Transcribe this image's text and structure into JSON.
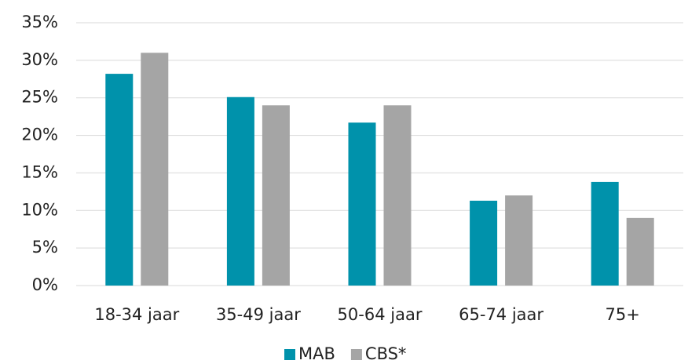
{
  "chart_data": {
    "type": "bar",
    "categories": [
      "18-34 jaar",
      "35-49 jaar",
      "50-64 jaar",
      "65-74 jaar",
      "75+"
    ],
    "series": [
      {
        "name": "MAB",
        "color": "#0092ab",
        "values": [
          28.2,
          25.1,
          21.7,
          11.3,
          13.8
        ]
      },
      {
        "name": "CBS*",
        "color": "#a5a5a5",
        "values": [
          31,
          24,
          24,
          12,
          9
        ]
      }
    ],
    "ylim": [
      0,
      35
    ],
    "yticks": [
      {
        "value": 0,
        "label": "0%"
      },
      {
        "value": 5,
        "label": "5%"
      },
      {
        "value": 10,
        "label": "10%"
      },
      {
        "value": 15,
        "label": "15%"
      },
      {
        "value": 20,
        "label": "20%"
      },
      {
        "value": 25,
        "label": "25%"
      },
      {
        "value": 30,
        "label": "30%"
      },
      {
        "value": 35,
        "label": "35%"
      }
    ],
    "grid": true,
    "legend": "bottom"
  }
}
